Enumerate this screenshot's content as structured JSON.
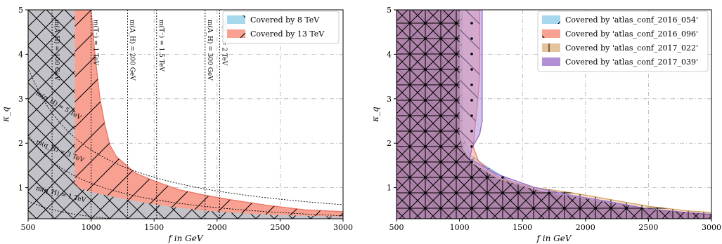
{
  "chart_data": [
    {
      "type": "area",
      "xlabel": "f in GeV",
      "ylabel": "κ_q",
      "xlim": [
        500,
        3000
      ],
      "ylim": [
        0.3,
        5
      ],
      "xticks": [
        500,
        1000,
        1500,
        2000,
        2500,
        3000
      ],
      "yticks": [
        1,
        2,
        3,
        4,
        5
      ],
      "legend_placement": "top-right",
      "series": [
        {
          "name": "Covered by 8 TeV",
          "color": "#a6d8ee",
          "hatch": "\\\\",
          "boundary": [
            [
              870,
              5
            ],
            [
              870,
              1.1
            ],
            [
              900,
              1.0
            ],
            [
              1000,
              0.9
            ],
            [
              1300,
              0.72
            ],
            [
              1600,
              0.58
            ],
            [
              1900,
              0.48
            ],
            [
              2200,
              0.42
            ],
            [
              2500,
              0.38
            ],
            [
              2800,
              0.36
            ],
            [
              3000,
              0.35
            ]
          ]
        },
        {
          "name": "Covered by 13 TeV",
          "color": "#f8a193",
          "hatch": "//",
          "boundary": [
            [
              1000,
              5
            ],
            [
              1030,
              4.0
            ],
            [
              1070,
              3.0
            ],
            [
              1110,
              2.4
            ],
            [
              1150,
              1.95
            ],
            [
              1200,
              1.7
            ],
            [
              1350,
              1.33
            ],
            [
              1500,
              1.15
            ],
            [
              1700,
              0.95
            ],
            [
              1900,
              0.83
            ],
            [
              2100,
              0.73
            ],
            [
              2400,
              0.6
            ],
            [
              2700,
              0.5
            ],
            [
              3000,
              0.46
            ]
          ]
        }
      ],
      "vlines": [
        {
          "x": 690,
          "label": "m(A_H) = 100 GeV"
        },
        {
          "x": 1000,
          "label": "m(T⁻) = 1 TeV"
        },
        {
          "x": 1290,
          "label": "m(A_H) = 200 GeV"
        },
        {
          "x": 1520,
          "label": "m(T⁻) = 1.5 TeV"
        },
        {
          "x": 1905,
          "label": "m(A_H) = 300 GeV"
        },
        {
          "x": 2020,
          "label": "m(T⁻) = 2 TeV"
        }
      ],
      "curves": [
        {
          "label": "m(q_H) = 1 TeV"
        },
        {
          "label": "m(q_H) = 3 TeV"
        },
        {
          "label": "m(q_H) = 5 TeV"
        }
      ]
    },
    {
      "type": "area",
      "xlabel": "f in GeV",
      "ylabel": "κ_q",
      "xlim": [
        500,
        3000
      ],
      "ylim": [
        0.3,
        5
      ],
      "xticks": [
        500,
        1000,
        1500,
        2000,
        2500,
        3000
      ],
      "yticks": [
        1,
        2,
        3,
        4,
        5
      ],
      "legend_placement": "top-right",
      "series": [
        {
          "name": "Covered by 'atlas_conf_2016_054'",
          "color": "#a6d8ee",
          "hatch": "/",
          "boundary": [
            [
              1020,
              5
            ],
            [
              1020,
              2.2
            ],
            [
              1080,
              1.75
            ],
            [
              1200,
              1.5
            ],
            [
              1400,
              1.15
            ],
            [
              1700,
              0.82
            ],
            [
              2000,
              0.62
            ],
            [
              2300,
              0.52
            ],
            [
              2600,
              0.46
            ],
            [
              2900,
              0.42
            ],
            [
              3000,
              0.41
            ]
          ]
        },
        {
          "name": "Covered by 'atlas_conf_2016_096'",
          "color": "#f8a193",
          "hatch": "\\",
          "boundary": [
            [
              1160,
              5
            ],
            [
              1160,
              3.5
            ],
            [
              1140,
              2.8
            ],
            [
              1120,
              2.3
            ],
            [
              1110,
              1.9
            ],
            [
              1150,
              1.6
            ],
            [
              1300,
              1.25
            ],
            [
              1500,
              1.05
            ],
            [
              1800,
              0.78
            ],
            [
              2100,
              0.6
            ],
            [
              2500,
              0.48
            ],
            [
              2800,
              0.42
            ],
            [
              3000,
              0.4
            ]
          ]
        },
        {
          "name": "Covered by 'atlas_conf_2017_022'",
          "color": "#e6c49b",
          "hatch": "+",
          "boundary": [
            [
              1000,
              5
            ],
            [
              1000,
              2.2
            ],
            [
              1030,
              1.85
            ],
            [
              1100,
              1.55
            ],
            [
              1300,
              1.2
            ],
            [
              1600,
              1.0
            ],
            [
              1900,
              0.88
            ],
            [
              2200,
              0.73
            ],
            [
              2500,
              0.58
            ],
            [
              2800,
              0.48
            ],
            [
              3000,
              0.44
            ]
          ]
        },
        {
          "name": "Covered by 'atlas_conf_2017_039'",
          "color": "#b38fd6",
          "hatch": ".",
          "boundary": [
            [
              1180,
              5
            ],
            [
              1180,
              2.5
            ],
            [
              1160,
              2.2
            ],
            [
              1100,
              1.9
            ],
            [
              1080,
              1.65
            ],
            [
              1300,
              1.3
            ],
            [
              1600,
              1.0
            ],
            [
              1900,
              0.82
            ],
            [
              2200,
              0.68
            ],
            [
              2500,
              0.52
            ],
            [
              2800,
              0.44
            ],
            [
              3000,
              0.4
            ]
          ]
        }
      ]
    }
  ]
}
